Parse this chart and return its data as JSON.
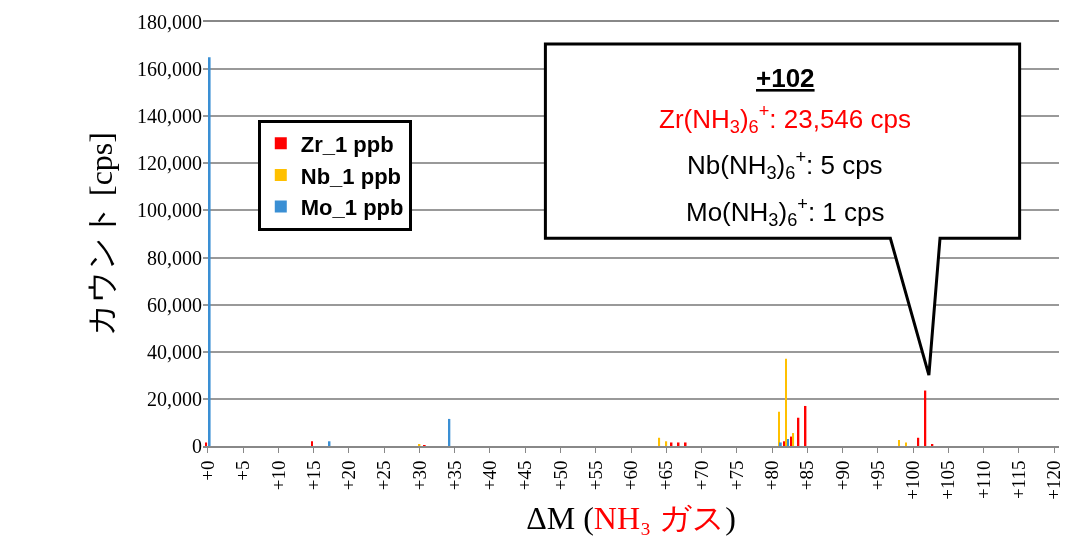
{
  "chart_data": {
    "type": "bar",
    "xlabel": "ΔM (NH₃ ガス)",
    "ylabel": "カウント [cps]",
    "categories": [
      "+0",
      null,
      null,
      null,
      null,
      "+5",
      null,
      null,
      null,
      null,
      "+10",
      null,
      null,
      null,
      null,
      "+15",
      null,
      null,
      null,
      null,
      "+20",
      null,
      null,
      null,
      null,
      "+25",
      null,
      null,
      null,
      null,
      "+30",
      null,
      null,
      null,
      null,
      "+35",
      null,
      null,
      null,
      null,
      "+40",
      null,
      null,
      null,
      null,
      "+45",
      null,
      null,
      null,
      null,
      "+50",
      null,
      null,
      null,
      null,
      "+55",
      null,
      null,
      null,
      null,
      "+60",
      null,
      null,
      null,
      null,
      "+65",
      null,
      null,
      null,
      null,
      "+70",
      null,
      null,
      null,
      null,
      "+75",
      null,
      null,
      null,
      null,
      "+80",
      null,
      null,
      null,
      null,
      "+85",
      null,
      null,
      null,
      null,
      "+90",
      null,
      null,
      null,
      null,
      "+95",
      null,
      null,
      null,
      null,
      "+100",
      null,
      null,
      null,
      null,
      "+105",
      null,
      null,
      null,
      null,
      "+110",
      null,
      null,
      null,
      null,
      "+115",
      null,
      null,
      null,
      null,
      "+120"
    ],
    "series": [
      {
        "name": "Zr_1 ppb",
        "color": "#ff0000",
        "values": [
          1500,
          0,
          0,
          0,
          0,
          0,
          0,
          0,
          0,
          0,
          0,
          0,
          0,
          0,
          0,
          2000,
          0,
          0,
          0,
          0,
          0,
          0,
          0,
          0,
          0,
          0,
          0,
          0,
          0,
          0,
          0,
          300,
          0,
          0,
          0,
          0,
          0,
          0,
          0,
          0,
          0,
          0,
          0,
          0,
          0,
          0,
          0,
          0,
          0,
          0,
          0,
          0,
          0,
          0,
          0,
          0,
          0,
          0,
          0,
          0,
          0,
          0,
          0,
          0,
          0,
          0,
          1500,
          1500,
          1500,
          0,
          0,
          0,
          0,
          0,
          0,
          0,
          0,
          0,
          0,
          0,
          0,
          0,
          2000,
          4000,
          12000,
          17000,
          0,
          0,
          0,
          0,
          0,
          0,
          0,
          0,
          0,
          0,
          0,
          0,
          0,
          0,
          0,
          3500,
          23546,
          500,
          0,
          0,
          0,
          0,
          0,
          0,
          0,
          0,
          0,
          0,
          0,
          0,
          0,
          0,
          0,
          0,
          0
        ]
      },
      {
        "name": "Nb_1 ppb",
        "color": "#ffc000",
        "values": [
          null,
          0,
          0,
          0,
          0,
          0,
          0,
          0,
          0,
          0,
          0,
          0,
          0,
          0,
          0,
          0,
          0,
          0,
          0,
          0,
          0,
          0,
          0,
          0,
          0,
          0,
          0,
          0,
          0,
          0,
          800,
          0,
          0,
          0,
          0,
          0,
          0,
          0,
          0,
          0,
          0,
          0,
          0,
          0,
          0,
          0,
          0,
          0,
          0,
          0,
          0,
          0,
          0,
          0,
          0,
          0,
          0,
          0,
          0,
          0,
          0,
          0,
          0,
          0,
          3500,
          2000,
          0,
          0,
          0,
          0,
          0,
          0,
          0,
          0,
          0,
          0,
          0,
          0,
          0,
          0,
          0,
          14500,
          37000,
          5500,
          0,
          0,
          0,
          0,
          0,
          0,
          0,
          0,
          0,
          0,
          0,
          0,
          0,
          0,
          2500,
          1500,
          0,
          0,
          0,
          0,
          0,
          0,
          0,
          0,
          0,
          0,
          0,
          0,
          0,
          0,
          0,
          0,
          0,
          0,
          0,
          0,
          0
        ]
      },
      {
        "name": "Mo_1 ppb",
        "color": "#3a8fd4",
        "values": [
          165000,
          0,
          0,
          0,
          0,
          0,
          0,
          0,
          0,
          0,
          0,
          0,
          0,
          0,
          0,
          0,
          0,
          2000,
          0,
          0,
          0,
          0,
          0,
          0,
          0,
          0,
          0,
          0,
          0,
          0,
          0,
          0,
          0,
          0,
          11500,
          0,
          0,
          0,
          0,
          0,
          0,
          0,
          0,
          0,
          0,
          0,
          0,
          0,
          0,
          0,
          0,
          0,
          0,
          0,
          0,
          0,
          0,
          0,
          0,
          0,
          0,
          0,
          0,
          0,
          0,
          0,
          0,
          0,
          0,
          0,
          0,
          0,
          0,
          0,
          0,
          0,
          0,
          0,
          0,
          0,
          0,
          1500,
          3000,
          0,
          0,
          0,
          0,
          0,
          0,
          0,
          0,
          0,
          0,
          0,
          0,
          0,
          0,
          0,
          0,
          0,
          0,
          0,
          0,
          0,
          0,
          0,
          0,
          0,
          0,
          0,
          0,
          0,
          0,
          0,
          0,
          0,
          0,
          0,
          0,
          0,
          0
        ]
      }
    ],
    "ylim": [
      0,
      180000
    ],
    "yticks": [
      {
        "value": 0,
        "label": "0"
      },
      {
        "value": 20000,
        "label": "20,000"
      },
      {
        "value": 40000,
        "label": "40,000"
      },
      {
        "value": 60000,
        "label": "60,000"
      },
      {
        "value": 80000,
        "label": "80,000"
      },
      {
        "value": 100000,
        "label": "100,000"
      },
      {
        "value": 120000,
        "label": "120,000"
      },
      {
        "value": 140000,
        "label": "140,000"
      },
      {
        "value": 160000,
        "label": "160,000"
      },
      {
        "value": 180000,
        "label": "180,000"
      }
    ],
    "grid": "y",
    "legend": "top left",
    "annotations": [
      "+102",
      "Zr(NH$_{3}$)$_{6}$$^{+}$: 23,546 cps",
      "Nb(NH$_{3}$)$_{6}$$^{+}$: 5 cps",
      "Mo(NH$_{3}$)$_{6}$$^{+}$: 1 cps"
    ]
  }
}
